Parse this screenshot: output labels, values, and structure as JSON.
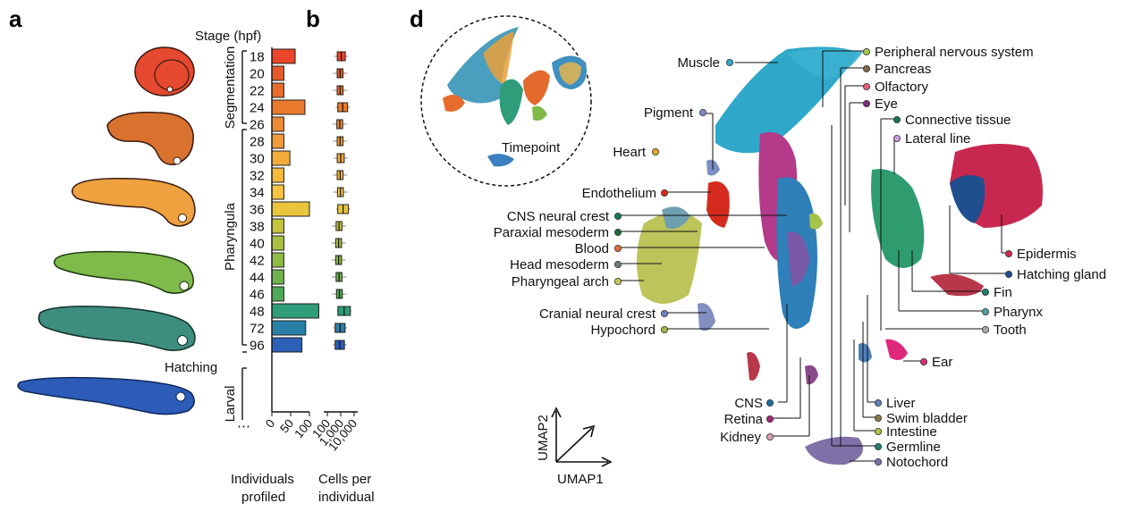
{
  "panels": {
    "a": "a",
    "b": "b",
    "d": "d"
  },
  "stage_header": "Stage (hpf)",
  "stages": [
    "18",
    "20",
    "22",
    "24",
    "26",
    "28",
    "30",
    "32",
    "34",
    "36",
    "38",
    "40",
    "42",
    "44",
    "46",
    "48",
    "72",
    "96"
  ],
  "individuals": [
    62,
    32,
    32,
    88,
    32,
    32,
    48,
    32,
    32,
    100,
    32,
    32,
    32,
    32,
    32,
    125,
    90,
    80
  ],
  "cells_per_individual": [
    1100,
    900,
    900,
    1400,
    850,
    900,
    1000,
    900,
    950,
    1500,
    750,
    700,
    700,
    750,
    800,
    1800,
    900,
    850
  ],
  "bar_colors": [
    "#e8452b",
    "#e65a2a",
    "#e96d2d",
    "#ea7a2c",
    "#ed8a34",
    "#f09a3a",
    "#f3ac3b",
    "#f6b83e",
    "#f7c443",
    "#e9c53c",
    "#c3c33f",
    "#a9c043",
    "#8dbb46",
    "#6fb34d",
    "#4fa95a",
    "#2f9c7a",
    "#2a7fa8",
    "#2c5fb8"
  ],
  "periods": {
    "segmentation": "Segmentation",
    "pharyngula": "Pharyngula",
    "hatching": "Hatching",
    "larval": "Larval"
  },
  "axis_a": {
    "ticks": [
      "0",
      "50",
      "100"
    ],
    "label_line1": "Individuals",
    "label_line2": "profiled"
  },
  "axis_b": {
    "ticks": [
      "100",
      "1,000",
      "10,000"
    ],
    "label_line1": "Cells per",
    "label_line2": "individual"
  },
  "embryo_colors": [
    "#e5492f",
    "#d9722f",
    "#eea13e",
    "#7fba4b",
    "#3e8e7f",
    "#2c5bb8"
  ],
  "umap": {
    "x": "UMAP1",
    "y": "UMAP2",
    "inset": "Timepoint"
  },
  "left_labels": [
    {
      "text": "Muscle",
      "color": "#2fa8c9"
    },
    {
      "text": "Pigment",
      "color": "#7b8fc6"
    },
    {
      "text": "Heart",
      "color": "#e3a52a"
    },
    {
      "text": "Endothelium",
      "color": "#d52b1e"
    },
    {
      "text": "CNS neural crest",
      "color": "#177b4e"
    },
    {
      "text": "Paraxial mesoderm",
      "color": "#1f6b3c"
    },
    {
      "text": "Blood",
      "color": "#e06b3c"
    },
    {
      "text": "Head mesoderm",
      "color": "#6b7d7b"
    },
    {
      "text": "Pharyngeal arch",
      "color": "#c2c85a"
    },
    {
      "text": "Cranial neural crest",
      "color": "#6f7fbf"
    },
    {
      "text": "Hypochord",
      "color": "#9fb74c"
    },
    {
      "text": "CNS",
      "color": "#1f6f9f"
    },
    {
      "text": "Retina",
      "color": "#a4287a"
    },
    {
      "text": "Kidney",
      "color": "#d8a0b0"
    }
  ],
  "top_labels": [
    {
      "text": "Peripheral nervous system",
      "color": "#a6c24a"
    },
    {
      "text": "Pancreas",
      "color": "#7b6a4a"
    },
    {
      "text": "Olfactory",
      "color": "#e0607a"
    },
    {
      "text": "Eye",
      "color": "#7a2f7a"
    },
    {
      "text": "Connective tissue",
      "color": "#177a4c"
    },
    {
      "text": "Lateral line",
      "color": "#c79be0"
    }
  ],
  "right_labels": [
    {
      "text": "Epidermis",
      "color": "#d2294f"
    },
    {
      "text": "Hatching gland",
      "color": "#1f4f8f"
    },
    {
      "text": "Fin",
      "color": "#1f7f6f"
    },
    {
      "text": "Pharynx",
      "color": "#4f9f9f"
    },
    {
      "text": "Tooth",
      "color": "#a9a9a9"
    },
    {
      "text": "Ear",
      "color": "#e0287a"
    }
  ],
  "bottom_labels": [
    {
      "text": "Liver",
      "color": "#5f7fb8"
    },
    {
      "text": "Swim bladder",
      "color": "#8a7a4a"
    },
    {
      "text": "Intestine",
      "color": "#a8c24f"
    },
    {
      "text": "Germline",
      "color": "#1f7f6f"
    },
    {
      "text": "Notochord",
      "color": "#7f6fa8"
    }
  ]
}
